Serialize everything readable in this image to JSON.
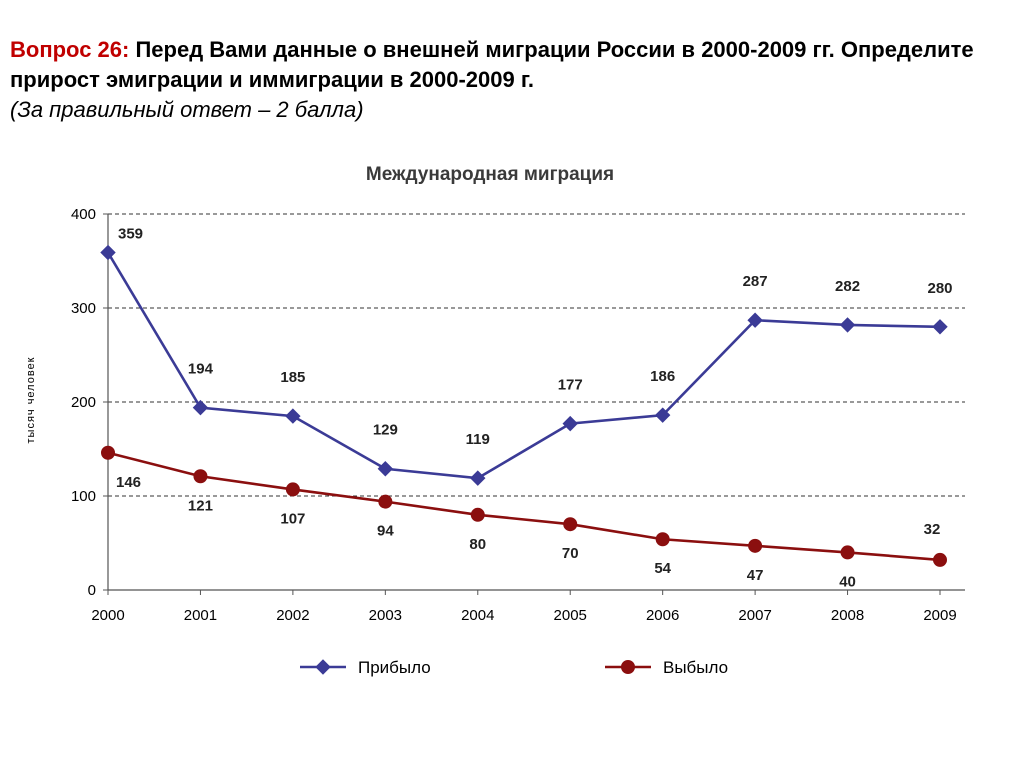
{
  "question": {
    "label": "Вопрос 26:",
    "text": "Перед Вами данные о внешней миграции России в 2000-2009 гг. Определите прирост эмиграции и иммиграции в 2000-2009 г.",
    "note": "(За правильный ответ – 2 балла)"
  },
  "chart_data": {
    "type": "line",
    "title": "Международная миграция",
    "xlabel": "",
    "ylabel": "тысяч человек",
    "x": [
      "2000",
      "2001",
      "2002",
      "2003",
      "2004",
      "2005",
      "2006",
      "2007",
      "2008",
      "2009"
    ],
    "ylim": [
      0,
      400
    ],
    "yticks": [
      0,
      100,
      200,
      300,
      400
    ],
    "grid": "dashed horizontal",
    "legend": "bottom",
    "series": [
      {
        "name": "Прибыло",
        "color": "#3b3b96",
        "marker": "diamond",
        "values": [
          359,
          194,
          185,
          129,
          119,
          177,
          186,
          287,
          282,
          280
        ]
      },
      {
        "name": "Выбыло",
        "color": "#8b0f0f",
        "marker": "circle",
        "values": [
          146,
          121,
          107,
          94,
          80,
          70,
          54,
          47,
          40,
          32
        ]
      }
    ]
  }
}
